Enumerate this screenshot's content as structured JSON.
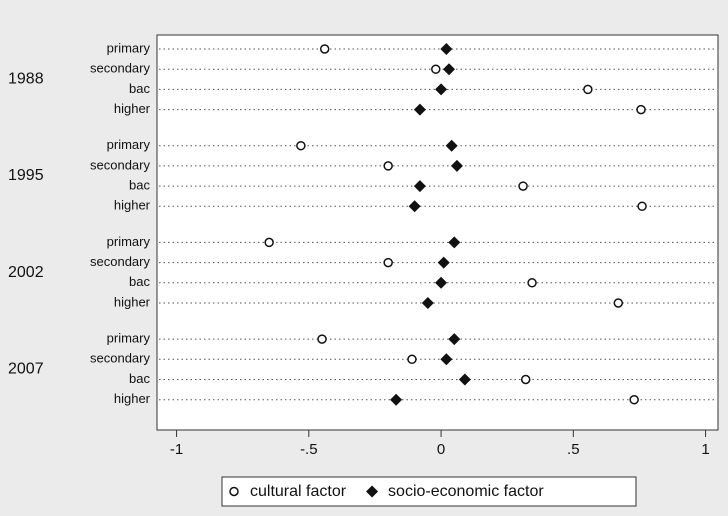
{
  "chart_data": {
    "type": "dot",
    "groups": [
      "1988",
      "1995",
      "2002",
      "2007"
    ],
    "categories": [
      "primary",
      "secondary",
      "bac",
      "higher",
      "primary",
      "secondary",
      "bac",
      "higher",
      "primary",
      "secondary",
      "bac",
      "higher",
      "primary",
      "secondary",
      "bac",
      "higher"
    ],
    "series": [
      {
        "name": "cultural factor",
        "color": "#111111",
        "marker": "circle",
        "values": [
          -0.44,
          -0.02,
          0.555,
          0.756,
          -0.53,
          -0.2,
          0.31,
          0.76,
          -0.65,
          -0.2,
          0.344,
          0.67,
          -0.45,
          -0.11,
          0.32,
          0.73
        ]
      },
      {
        "name": "socio-economic factor",
        "color": "#111111",
        "marker": "diamond",
        "values": [
          0.02,
          0.03,
          0.0,
          -0.08,
          0.04,
          0.06,
          -0.08,
          -0.1,
          0.05,
          0.01,
          0.0,
          -0.05,
          0.05,
          0.02,
          0.09,
          -0.17
        ]
      }
    ],
    "xlim": [
      -1.074,
      1.047
    ],
    "xticks": [
      -1,
      {
        "value": -0.5,
        "label": "-.5"
      },
      0,
      {
        "value": 0.5,
        "label": ".5"
      },
      1
    ],
    "grid": true
  }
}
